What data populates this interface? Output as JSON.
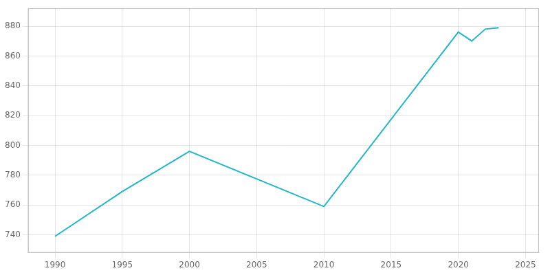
{
  "chart_data": {
    "type": "line",
    "x": [
      1990,
      1995,
      2000,
      2010,
      2020,
      2021,
      2022,
      2023
    ],
    "values": [
      739,
      769,
      796,
      759,
      876,
      870,
      878,
      879
    ],
    "color": "#20B8C8",
    "xlim": [
      1988,
      2026
    ],
    "ylim": [
      728,
      892
    ],
    "xticks": [
      1990,
      1995,
      2000,
      2005,
      2010,
      2015,
      2020,
      2025
    ],
    "yticks": [
      740,
      760,
      780,
      800,
      820,
      840,
      860,
      880
    ],
    "grid": true
  }
}
